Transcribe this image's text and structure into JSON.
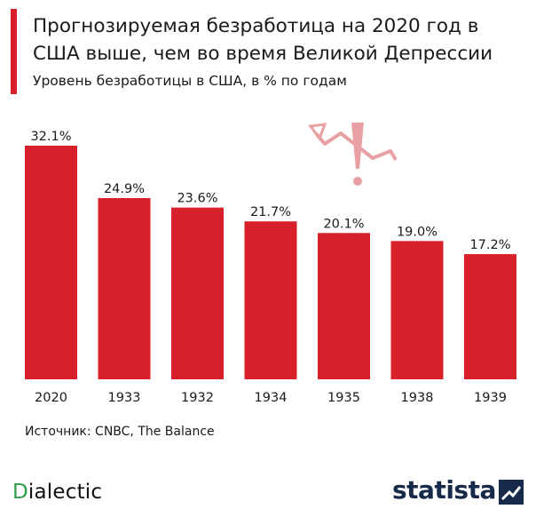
{
  "header": {
    "title": "Прогнозируемая безработица на 2020 год в США выше, чем во время Великой Депрессии",
    "subtitle": "Уровень безработицы в США, в % по годам",
    "accent_color": "#d8202a"
  },
  "footer": {
    "source": "Источник: CNBC, The Balance",
    "logo_left_initial": "D",
    "logo_left_rest": "ialectic",
    "logo_right": "statista",
    "logo_right_icon": "statista-mark-icon"
  },
  "decoration": {
    "icon": "rising-arrow-exclamation-icon",
    "color": "#e8a0a4"
  },
  "chart_data": {
    "type": "bar",
    "categories": [
      "2020",
      "1933",
      "1932",
      "1934",
      "1935",
      "1938",
      "1939"
    ],
    "values": [
      32.1,
      24.9,
      23.6,
      21.7,
      20.1,
      19.0,
      17.2
    ],
    "value_labels": [
      "32.1%",
      "24.9%",
      "23.6%",
      "21.7%",
      "20.1%",
      "19.0%",
      "17.2%"
    ],
    "bar_color": "#d8202a",
    "ylim": [
      0,
      32.1
    ],
    "grid": false,
    "legend": "none"
  }
}
